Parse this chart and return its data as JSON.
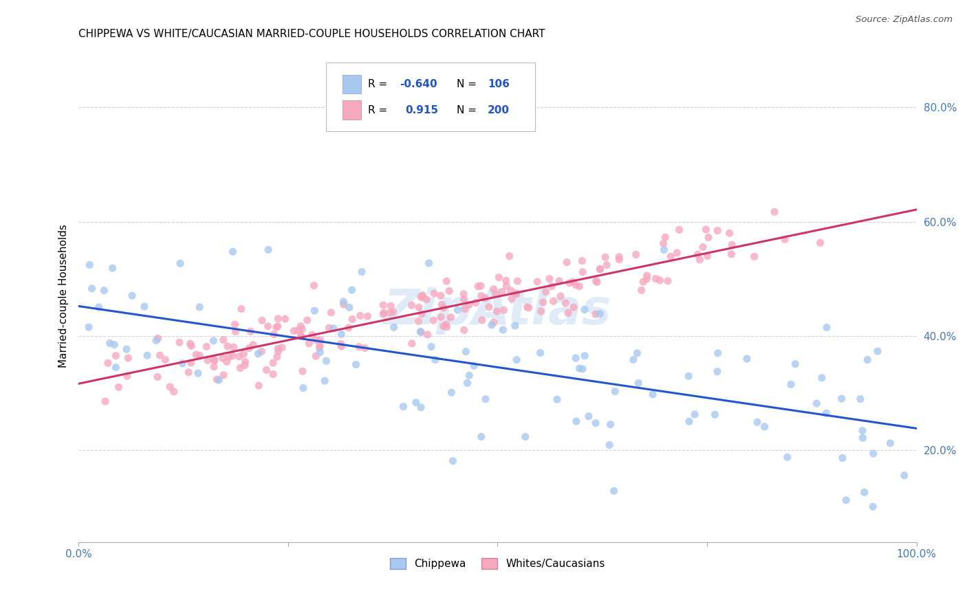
{
  "title": "CHIPPEWA VS WHITE/CAUCASIAN MARRIED-COUPLE HOUSEHOLDS CORRELATION CHART",
  "source": "Source: ZipAtlas.com",
  "ylabel_label": "Married-couple Households",
  "legend_label1": "Chippewa",
  "legend_label2": "Whites/Caucasians",
  "r1": -0.64,
  "n1": 106,
  "r2": 0.915,
  "n2": 200,
  "color_blue": "#A8C8F0",
  "color_pink": "#F5A8BE",
  "line_blue": "#2255CC",
  "line_pink": "#CC3366",
  "watermark": "ZipAtlas",
  "xmin": 0.0,
  "xmax": 1.0,
  "ymin": 0.04,
  "ymax": 0.9,
  "seed": 12
}
